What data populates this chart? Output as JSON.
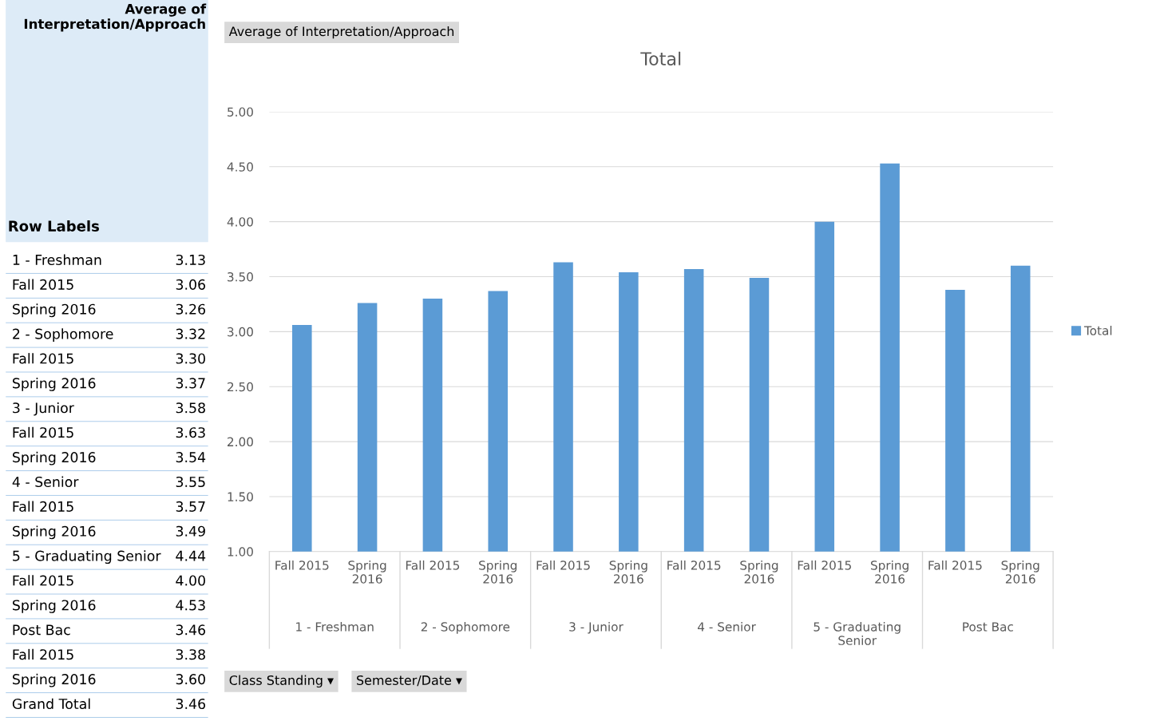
{
  "chart_data": [
    {
      "type": "other",
      "title": "Average of Interpretation/Approach",
      "xlabel": "Row Labels",
      "categories": [
        "1 - Freshman",
        "Fall 2015",
        "Spring 2016",
        "2 - Sophomore",
        "Fall 2015",
        "Spring 2016",
        "3 - Junior",
        "Fall 2015",
        "Spring 2016",
        "4 - Senior",
        "Fall 2015",
        "Spring 2016",
        "5 - Graduating Senior",
        "Fall 2015",
        "Spring 2016",
        "Post Bac",
        "Fall 2015",
        "Spring 2016",
        "Grand Total"
      ],
      "value_labels": [
        "3.13",
        "3.06",
        "3.26",
        "3.32",
        "3.30",
        "3.37",
        "3.58",
        "3.63",
        "3.54",
        "3.55",
        "3.57",
        "3.49",
        "4.44",
        "4.00",
        "4.53",
        "3.46",
        "3.38",
        "3.60",
        "3.46"
      ]
    },
    {
      "type": "bar",
      "title": "Total",
      "categories": [
        "Fall 2015",
        "Spring 2016",
        "Fall 2015",
        "Spring 2016",
        "Fall 2015",
        "Spring 2016",
        "Fall 2015",
        "Spring 2016",
        "Fall 2015",
        "Spring 2016",
        "Fall 2015",
        "Spring 2016"
      ],
      "series": [
        {
          "name": "Total",
          "color": "#5b9bd5",
          "values": [
            3.06,
            3.26,
            3.3,
            3.37,
            3.63,
            3.54,
            3.57,
            3.49,
            4.0,
            4.53,
            3.38,
            3.6
          ]
        }
      ],
      "ylim": [
        1,
        5
      ],
      "yticks": [
        {
          "value": 1,
          "label": "1.00"
        },
        {
          "value": 1.5,
          "label": "1.50"
        },
        {
          "value": 2,
          "label": "2.00"
        },
        {
          "value": 2.5,
          "label": "2.50"
        },
        {
          "value": 3,
          "label": "3.00"
        },
        {
          "value": 3.5,
          "label": "3.50"
        },
        {
          "value": 4,
          "label": "4.00"
        },
        {
          "value": 4.5,
          "label": "4.50"
        },
        {
          "value": 5,
          "label": "5.00"
        }
      ],
      "grid": "y",
      "legend": "right",
      "annotations": [
        "1 - Freshman",
        "2 - Sophomore",
        "3 - Junior",
        "4 - Senior",
        "5 - Graduating\nSenior",
        "Post Bac",
        "Average of Interpretation/Approach",
        "Class Standing ▾",
        "Semester/Date ▾"
      ]
    }
  ]
}
